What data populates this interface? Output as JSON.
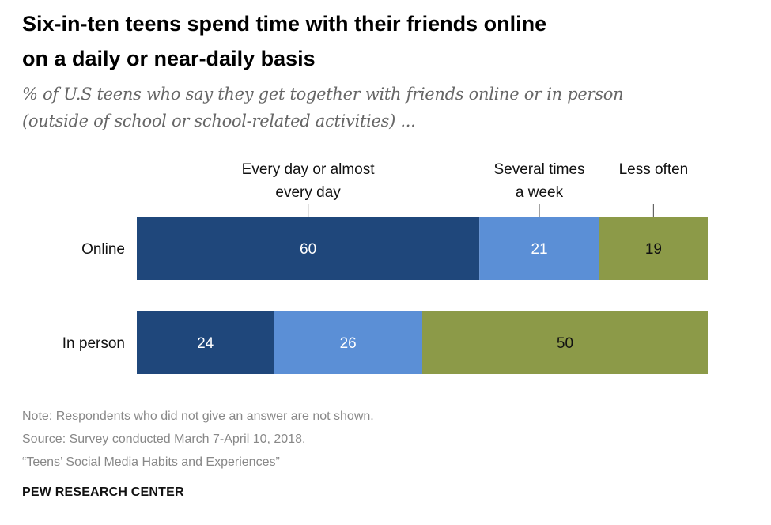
{
  "header": {
    "title_line1": "Six-in-ten teens spend time with their friends online",
    "title_line2": "on a daily or near-daily basis",
    "subtitle_line1": "% of U.S teens who say they get together with friends online or in person",
    "subtitle_line2": "(outside of school or school-related activities) ..."
  },
  "chart_data": {
    "type": "bar",
    "orientation": "horizontal",
    "stacked": true,
    "categories": [
      "Online",
      "In person"
    ],
    "series": [
      {
        "name": "Every day or almost every day",
        "label_lines": [
          "Every day or almost",
          "every day"
        ],
        "values": [
          60,
          24
        ],
        "color": "#1f477b"
      },
      {
        "name": "Several times a week",
        "label_lines": [
          "Several times",
          "a week"
        ],
        "values": [
          21,
          26
        ],
        "color": "#5b8fd6"
      },
      {
        "name": "Less often",
        "label_lines": [
          "Less often"
        ],
        "values": [
          19,
          50
        ],
        "color": "#8c9a48"
      }
    ],
    "xlim": [
      0,
      100
    ],
    "grid": false,
    "legend": "top"
  },
  "footer": {
    "note": "Note: Respondents who did not give an answer are not shown.",
    "source": "Source: Survey conducted March 7-April 10, 2018.",
    "report": "“Teens’ Social Media Habits and Experiences”",
    "brand": "PEW RESEARCH CENTER"
  }
}
